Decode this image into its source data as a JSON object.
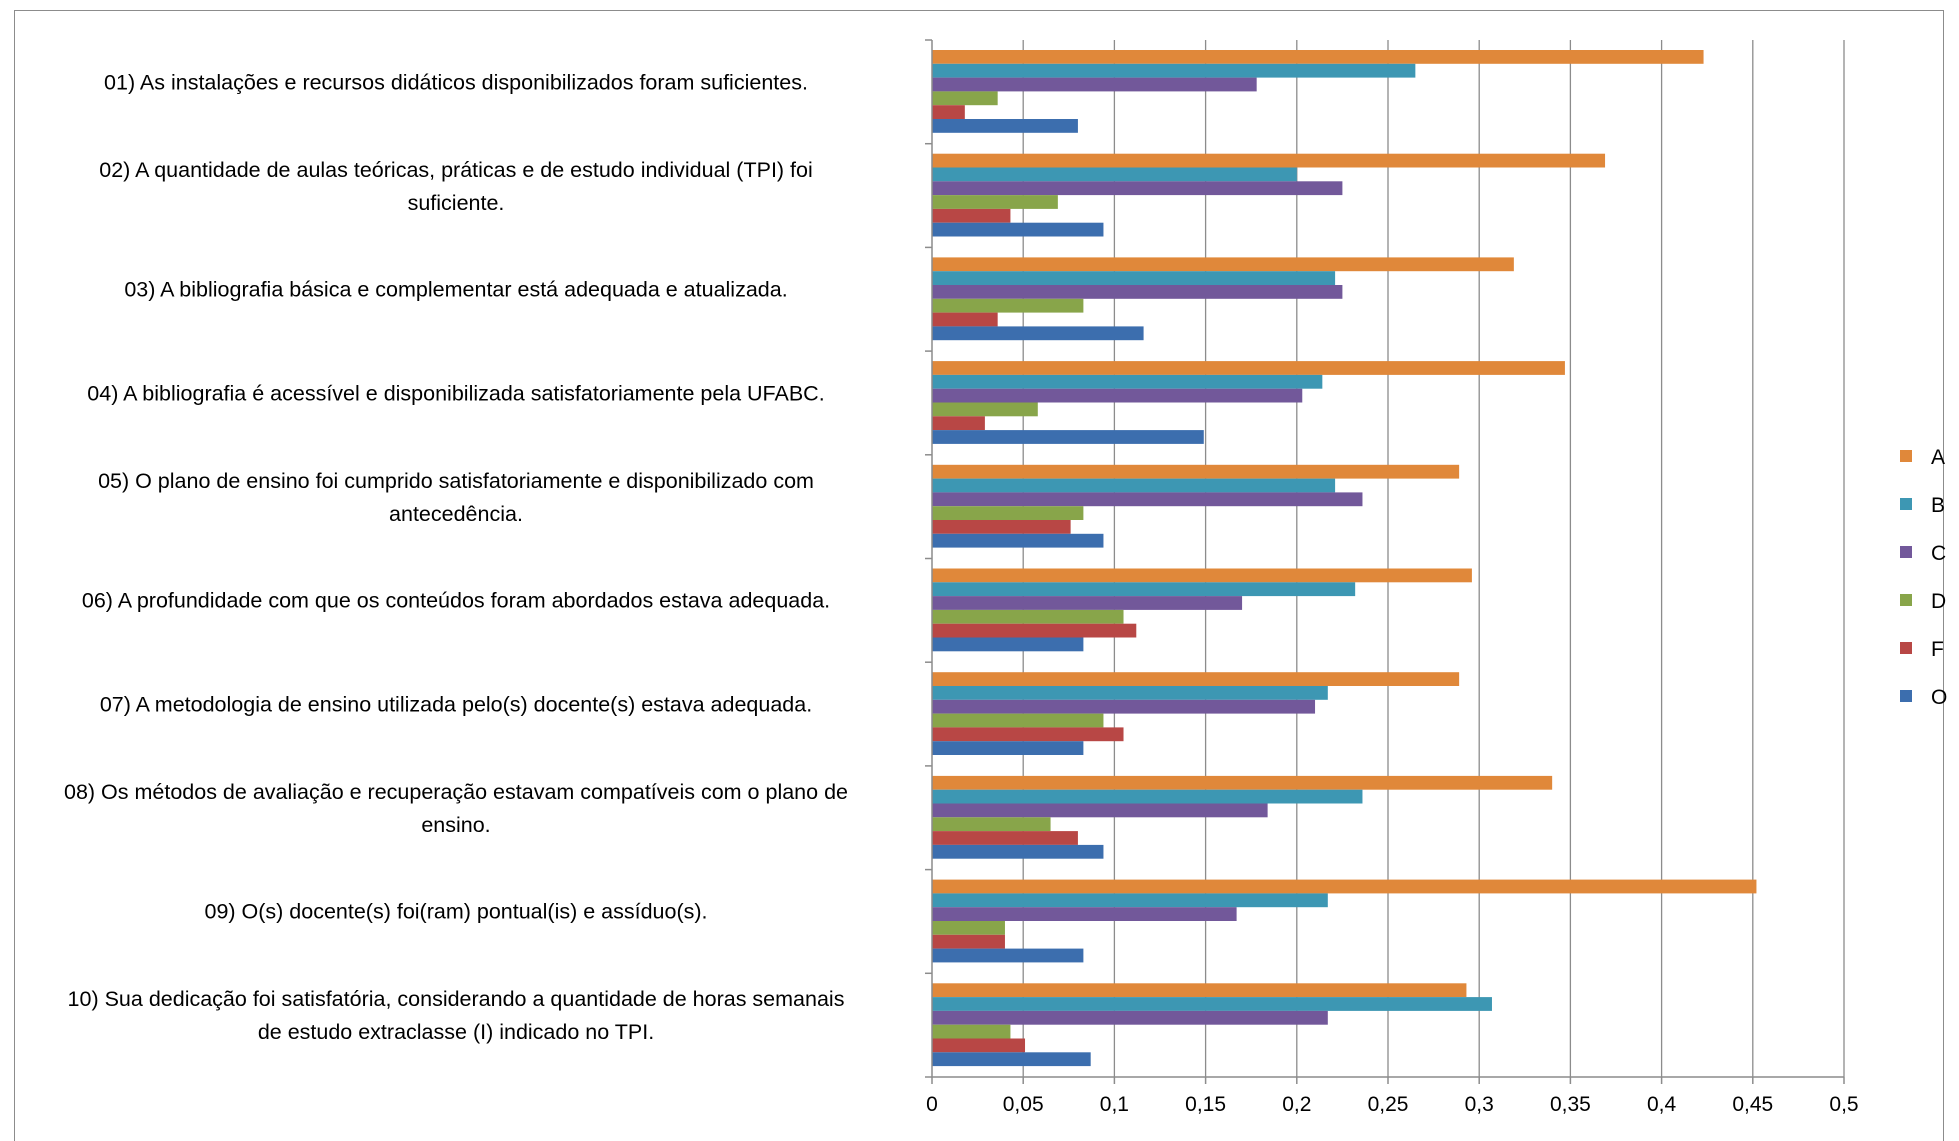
{
  "chart_data": {
    "type": "bar",
    "orientation": "horizontal",
    "title": "",
    "xlabel": "",
    "ylabel": "",
    "xlim": [
      0,
      0.5
    ],
    "x_ticks": [
      "0",
      "0,05",
      "0,1",
      "0,15",
      "0,2",
      "0,25",
      "0,3",
      "0,35",
      "0,4",
      "0,45",
      "0,5"
    ],
    "grid": "vertical",
    "legend_position": "right",
    "categories": [
      "01) As instalações e recursos didáticos disponibilizados foram suficientes.",
      "02) A quantidade de aulas teóricas, práticas e de estudo individual (TPI) foi suficiente.",
      "03) A bibliografia básica e complementar está adequada e atualizada.",
      "04) A bibliografia é acessível e disponibilizada satisfatoriamente pela UFABC.",
      "05) O plano de ensino foi cumprido satisfatoriamente e disponibilizado com antecedência.",
      "06) A profundidade com que os conteúdos foram abordados estava adequada.",
      "07) A metodologia de ensino utilizada pelo(s) docente(s) estava adequada.",
      "08) Os métodos de avaliação e recuperação estavam compatíveis com o plano de ensino.",
      "09) O(s) docente(s) foi(ram) pontual(is) e assíduo(s).",
      "10) Sua dedicação foi satisfatória, considerando a quantidade de horas semanais de estudo extraclasse (I) indicado no TPI."
    ],
    "category_lines": [
      [
        "01) As instalações e recursos didáticos disponibilizados foram suficientes."
      ],
      [
        "02) A quantidade de aulas teóricas, práticas e de estudo individual (TPI) foi",
        "suficiente."
      ],
      [
        "03) A bibliografia básica e complementar está adequada e atualizada."
      ],
      [
        "04) A bibliografia é acessível e disponibilizada satisfatoriamente pela UFABC."
      ],
      [
        "05) O plano de ensino foi cumprido satisfatoriamente e disponibilizado com",
        "antecedência."
      ],
      [
        "06) A profundidade com que os conteúdos foram abordados estava adequada."
      ],
      [
        "07) A metodologia de ensino utilizada pelo(s) docente(s) estava adequada."
      ],
      [
        "08) Os métodos de avaliação e recuperação estavam compatíveis com o plano de",
        "ensino."
      ],
      [
        "09) O(s) docente(s) foi(ram) pontual(is) e assíduo(s)."
      ],
      [
        "10) Sua dedicação foi satisfatória, considerando a quantidade de horas semanais",
        "de estudo extraclasse (I) indicado no TPI."
      ]
    ],
    "series": [
      {
        "name": "A",
        "color": "#e0883a",
        "values": [
          0.423,
          0.369,
          0.319,
          0.347,
          0.289,
          0.296,
          0.289,
          0.34,
          0.452,
          0.293
        ]
      },
      {
        "name": "B",
        "color": "#3d97b3",
        "values": [
          0.265,
          0.2,
          0.221,
          0.214,
          0.221,
          0.232,
          0.217,
          0.236,
          0.217,
          0.307
        ]
      },
      {
        "name": "C",
        "color": "#72589a",
        "values": [
          0.178,
          0.225,
          0.225,
          0.203,
          0.236,
          0.17,
          0.21,
          0.184,
          0.167,
          0.217
        ]
      },
      {
        "name": "D",
        "color": "#88a54a",
        "values": [
          0.036,
          0.069,
          0.083,
          0.058,
          0.083,
          0.105,
          0.094,
          0.065,
          0.04,
          0.043
        ]
      },
      {
        "name": "F",
        "color": "#b84745",
        "values": [
          0.018,
          0.043,
          0.036,
          0.029,
          0.076,
          0.112,
          0.105,
          0.08,
          0.04,
          0.051
        ]
      },
      {
        "name": "O",
        "color": "#3c6eae",
        "values": [
          0.08,
          0.094,
          0.116,
          0.149,
          0.094,
          0.083,
          0.083,
          0.094,
          0.083,
          0.087
        ]
      }
    ]
  }
}
